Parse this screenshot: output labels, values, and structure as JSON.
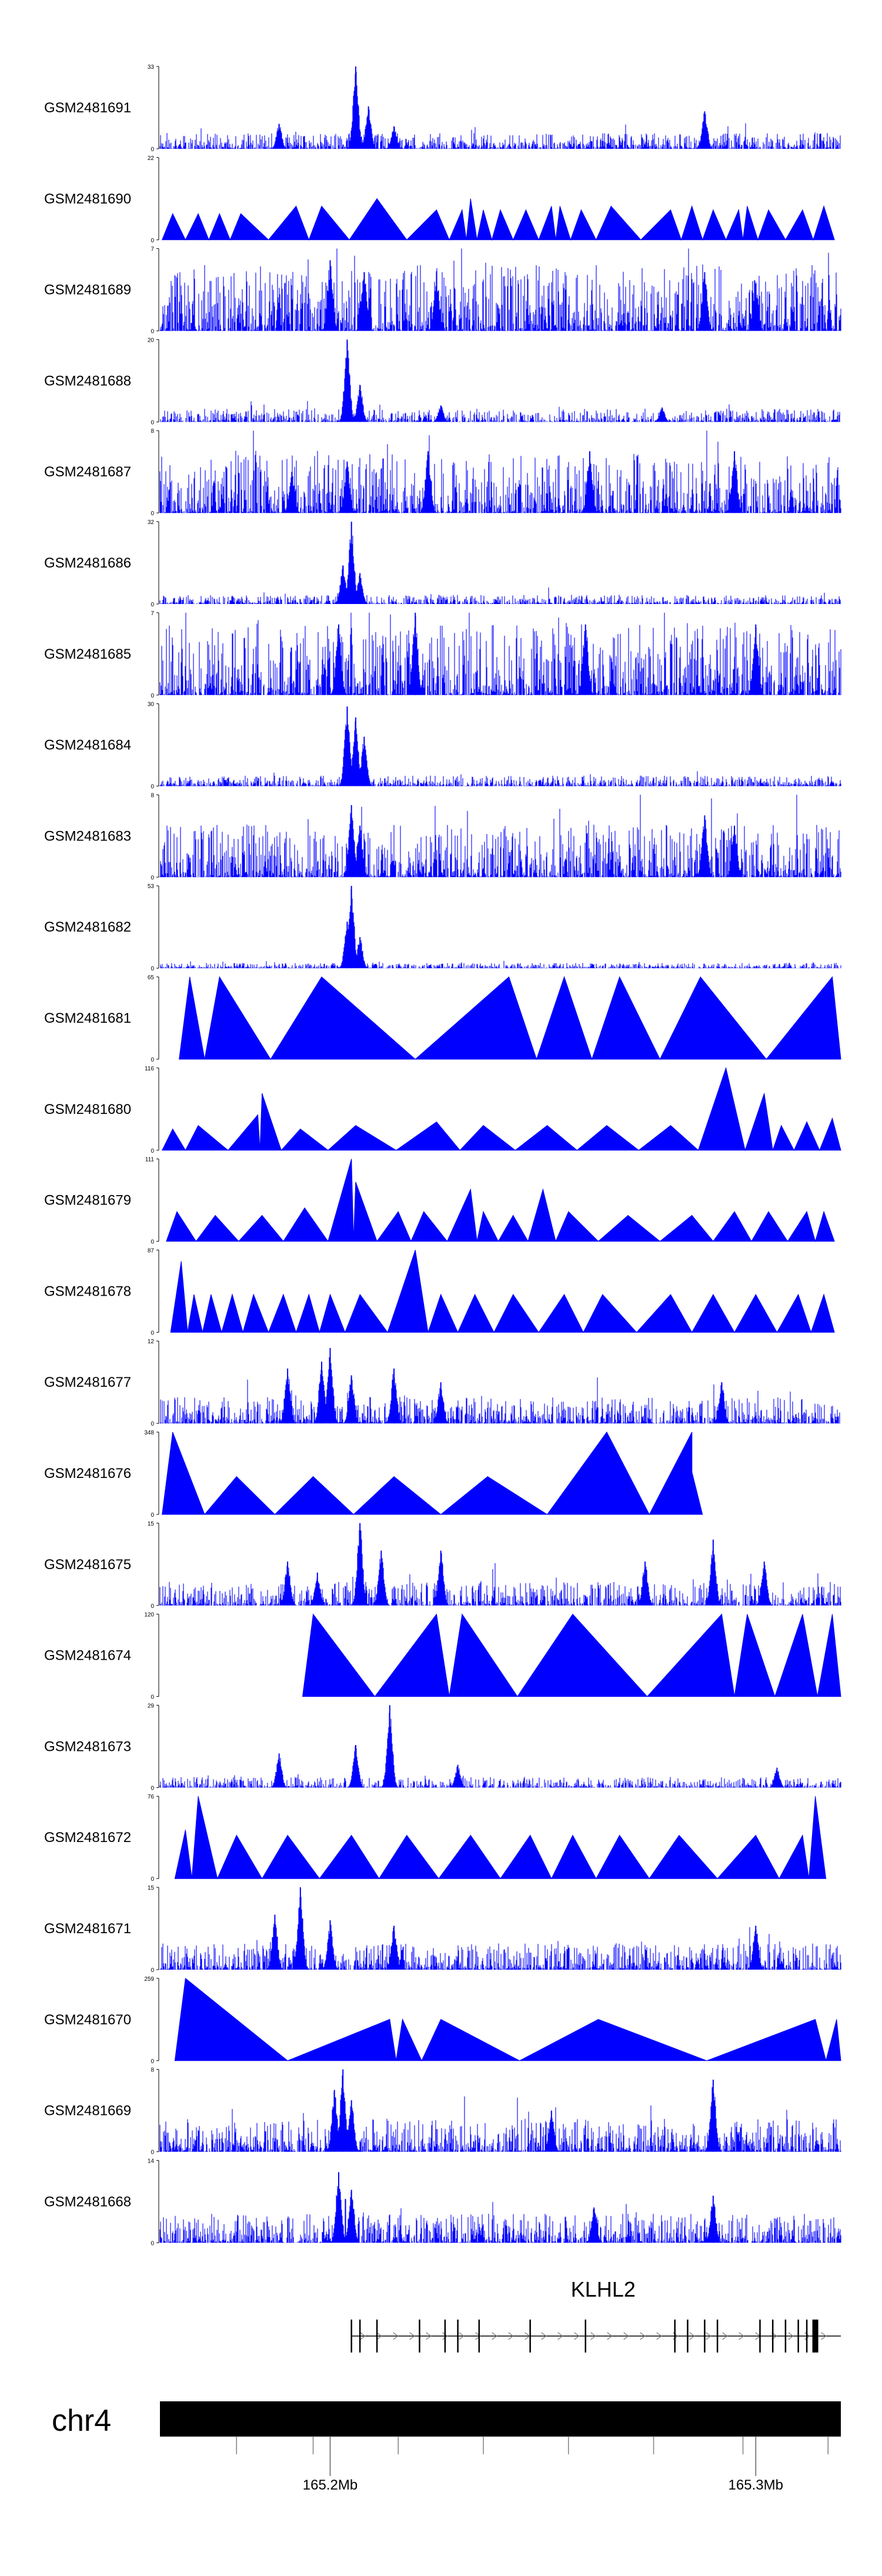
{
  "chart_data": {
    "type": "area",
    "chromosome": "chr4",
    "region": {
      "start": 165.16,
      "end": 165.32,
      "unit": "Mb"
    },
    "tracks": [
      {
        "name": "GSM2481691",
        "ymax": 33,
        "ymin": 0,
        "style": "dense",
        "peaks": [
          [
            165.188,
            10
          ],
          [
            165.206,
            33
          ],
          [
            165.209,
            17
          ],
          [
            165.215,
            9
          ],
          [
            165.288,
            15
          ]
        ],
        "noise": 0.12,
        "seed": 1
      },
      {
        "name": "GSM2481690",
        "ymax": 22,
        "ymin": 0,
        "style": "triangles",
        "peaks": [
          [
            165.163,
            7
          ],
          [
            165.169,
            7
          ],
          [
            165.174,
            7
          ],
          [
            165.179,
            7
          ],
          [
            165.192,
            9
          ],
          [
            165.198,
            9
          ],
          [
            165.211,
            11
          ],
          [
            165.225,
            8
          ],
          [
            165.231,
            8
          ],
          [
            165.233,
            11
          ],
          [
            165.236,
            8
          ],
          [
            165.24,
            8
          ],
          [
            165.246,
            8
          ],
          [
            165.252,
            9
          ],
          [
            165.254,
            9
          ],
          [
            165.259,
            8
          ],
          [
            165.266,
            9
          ],
          [
            165.28,
            8
          ],
          [
            165.285,
            9
          ],
          [
            165.29,
            8
          ],
          [
            165.296,
            8
          ],
          [
            165.298,
            9
          ],
          [
            165.303,
            8
          ],
          [
            165.311,
            8
          ],
          [
            165.316,
            9
          ]
        ],
        "noise": 0.25,
        "seed": 2
      },
      {
        "name": "GSM2481689",
        "ymax": 7,
        "ymin": 0,
        "style": "dense",
        "peaks": [
          [
            165.2,
            6
          ],
          [
            165.208,
            5
          ],
          [
            165.225,
            4.5
          ],
          [
            165.288,
            5
          ],
          [
            165.3,
            4
          ]
        ],
        "noise": 0.5,
        "seed": 3
      },
      {
        "name": "GSM2481688",
        "ymax": 20,
        "ymin": 0,
        "style": "dense",
        "peaks": [
          [
            165.204,
            20
          ],
          [
            165.207,
            9
          ],
          [
            165.226,
            4
          ],
          [
            165.278,
            3.5
          ]
        ],
        "noise": 0.1,
        "seed": 4
      },
      {
        "name": "GSM2481687",
        "ymax": 8,
        "ymin": 0,
        "style": "dense",
        "peaks": [
          [
            165.191,
            4
          ],
          [
            165.204,
            5
          ],
          [
            165.223,
            6
          ],
          [
            165.261,
            6
          ],
          [
            165.295,
            6
          ]
        ],
        "noise": 0.45,
        "seed": 5
      },
      {
        "name": "GSM2481686",
        "ymax": 32,
        "ymin": 0,
        "style": "dense",
        "peaks": [
          [
            165.205,
            32
          ],
          [
            165.203,
            15
          ],
          [
            165.207,
            12
          ]
        ],
        "noise": 0.07,
        "seed": 6
      },
      {
        "name": "GSM2481685",
        "ymax": 7,
        "ymin": 0,
        "style": "dense",
        "peaks": [
          [
            165.202,
            6
          ],
          [
            165.22,
            7
          ],
          [
            165.26,
            6
          ],
          [
            165.3,
            6
          ]
        ],
        "noise": 0.55,
        "seed": 7
      },
      {
        "name": "GSM2481684",
        "ymax": 30,
        "ymin": 0,
        "style": "dense",
        "peaks": [
          [
            165.204,
            29
          ],
          [
            165.206,
            25
          ],
          [
            165.208,
            18
          ]
        ],
        "noise": 0.08,
        "seed": 8
      },
      {
        "name": "GSM2481683",
        "ymax": 8,
        "ymin": 0,
        "style": "dense",
        "peaks": [
          [
            165.205,
            7
          ],
          [
            165.207,
            5
          ],
          [
            165.288,
            6
          ],
          [
            165.295,
            5
          ]
        ],
        "noise": 0.4,
        "seed": 9
      },
      {
        "name": "GSM2481682",
        "ymax": 53,
        "ymin": 0,
        "style": "dense",
        "peaks": [
          [
            165.205,
            53
          ],
          [
            165.204,
            30
          ],
          [
            165.207,
            20
          ]
        ],
        "noise": 0.04,
        "seed": 10
      },
      {
        "name": "GSM2481681",
        "ymax": 65,
        "ymin": 0,
        "style": "triangles",
        "peaks": [
          [
            165.167,
            65
          ],
          [
            165.174,
            65
          ],
          [
            165.198,
            65
          ],
          [
            165.242,
            65
          ],
          [
            165.255,
            65
          ],
          [
            165.268,
            65
          ],
          [
            165.287,
            65
          ],
          [
            165.318,
            65
          ]
        ],
        "noise": 0,
        "seed": 11
      },
      {
        "name": "GSM2481680",
        "ymax": 116,
        "ymin": 0,
        "style": "triangles",
        "peaks": [
          [
            165.163,
            30
          ],
          [
            165.169,
            35
          ],
          [
            165.183,
            50
          ],
          [
            165.184,
            80
          ],
          [
            165.193,
            30
          ],
          [
            165.206,
            35
          ],
          [
            165.225,
            40
          ],
          [
            165.236,
            35
          ],
          [
            165.251,
            35
          ],
          [
            165.265,
            35
          ],
          [
            165.28,
            35
          ],
          [
            165.293,
            116
          ],
          [
            165.302,
            80
          ],
          [
            165.306,
            35
          ],
          [
            165.312,
            40
          ],
          [
            165.318,
            45
          ]
        ],
        "noise": 0,
        "seed": 12
      },
      {
        "name": "GSM2481679",
        "ymax": 111,
        "ymin": 0,
        "style": "triangles",
        "peaks": [
          [
            165.164,
            40
          ],
          [
            165.173,
            35
          ],
          [
            165.184,
            35
          ],
          [
            165.194,
            45
          ],
          [
            165.205,
            111
          ],
          [
            165.206,
            80
          ],
          [
            165.216,
            40
          ],
          [
            165.222,
            40
          ],
          [
            165.233,
            70
          ],
          [
            165.236,
            40
          ],
          [
            165.243,
            35
          ],
          [
            165.25,
            70
          ],
          [
            165.256,
            40
          ],
          [
            165.27,
            35
          ],
          [
            165.285,
            35
          ],
          [
            165.295,
            40
          ],
          [
            165.303,
            40
          ],
          [
            165.312,
            40
          ],
          [
            165.316,
            40
          ]
        ],
        "noise": 0,
        "seed": 13
      },
      {
        "name": "GSM2481678",
        "ymax": 87,
        "ymin": 0,
        "style": "triangles",
        "peaks": [
          [
            165.165,
            75
          ],
          [
            165.168,
            40
          ],
          [
            165.172,
            40
          ],
          [
            165.177,
            40
          ],
          [
            165.182,
            40
          ],
          [
            165.189,
            40
          ],
          [
            165.195,
            40
          ],
          [
            165.2,
            40
          ],
          [
            165.207,
            40
          ],
          [
            165.22,
            87
          ],
          [
            165.226,
            40
          ],
          [
            165.234,
            40
          ],
          [
            165.243,
            40
          ],
          [
            165.255,
            40
          ],
          [
            165.264,
            40
          ],
          [
            165.28,
            40
          ],
          [
            165.29,
            40
          ],
          [
            165.3,
            40
          ],
          [
            165.31,
            40
          ],
          [
            165.316,
            40
          ]
        ],
        "noise": 0,
        "seed": 14
      },
      {
        "name": "GSM2481677",
        "ymax": 12,
        "ymin": 0,
        "style": "dense",
        "peaks": [
          [
            165.19,
            8
          ],
          [
            165.198,
            9
          ],
          [
            165.2,
            11
          ],
          [
            165.205,
            7
          ],
          [
            165.215,
            8
          ],
          [
            165.226,
            6
          ],
          [
            165.292,
            6
          ]
        ],
        "noise": 0.2,
        "seed": 15
      },
      {
        "name": "GSM2481676",
        "ymax": 348,
        "ymin": 0,
        "style": "triangles",
        "peaks": [
          [
            165.163,
            348
          ],
          [
            165.178,
            160
          ],
          [
            165.196,
            160
          ],
          [
            165.215,
            160
          ],
          [
            165.237,
            160
          ],
          [
            165.265,
            348
          ],
          [
            165.285,
            348
          ],
          [
            165.285,
            180
          ]
        ],
        "noise": 0,
        "seed": 16
      },
      {
        "name": "GSM2481675",
        "ymax": 15,
        "ymin": 0,
        "style": "dense",
        "peaks": [
          [
            165.19,
            8
          ],
          [
            165.197,
            6
          ],
          [
            165.207,
            15
          ],
          [
            165.212,
            10
          ],
          [
            165.226,
            10
          ],
          [
            165.274,
            8
          ],
          [
            165.29,
            12
          ],
          [
            165.302,
            8
          ]
        ],
        "noise": 0.18,
        "seed": 17
      },
      {
        "name": "GSM2481674",
        "ymax": 120,
        "ymin": 0,
        "style": "triangles",
        "peaks": [
          [
            165.196,
            120
          ],
          [
            165.225,
            120
          ],
          [
            165.231,
            120
          ],
          [
            165.257,
            120
          ],
          [
            165.292,
            120
          ],
          [
            165.298,
            120
          ],
          [
            165.311,
            120
          ],
          [
            165.318,
            120
          ]
        ],
        "noise": 0,
        "seed": 18
      },
      {
        "name": "GSM2481673",
        "ymax": 29,
        "ymin": 0,
        "style": "dense",
        "peaks": [
          [
            165.188,
            12
          ],
          [
            165.206,
            15
          ],
          [
            165.214,
            29
          ],
          [
            165.23,
            8
          ],
          [
            165.305,
            7
          ]
        ],
        "noise": 0.08,
        "seed": 19
      },
      {
        "name": "GSM2481672",
        "ymax": 76,
        "ymin": 0,
        "style": "triangles",
        "peaks": [
          [
            165.166,
            45
          ],
          [
            165.169,
            76
          ],
          [
            165.178,
            40
          ],
          [
            165.19,
            40
          ],
          [
            165.205,
            40
          ],
          [
            165.218,
            40
          ],
          [
            165.233,
            40
          ],
          [
            165.247,
            40
          ],
          [
            165.257,
            40
          ],
          [
            165.268,
            40
          ],
          [
            165.282,
            40
          ],
          [
            165.3,
            40
          ],
          [
            165.311,
            40
          ],
          [
            165.314,
            76
          ]
        ],
        "noise": 0,
        "seed": 20
      },
      {
        "name": "GSM2481671",
        "ymax": 15,
        "ymin": 0,
        "style": "dense",
        "peaks": [
          [
            165.187,
            10
          ],
          [
            165.193,
            15
          ],
          [
            165.2,
            9
          ],
          [
            165.215,
            8
          ],
          [
            165.3,
            8
          ]
        ],
        "noise": 0.2,
        "seed": 21
      },
      {
        "name": "GSM2481670",
        "ymax": 259,
        "ymin": 0,
        "style": "triangles",
        "peaks": [
          [
            165.166,
            259
          ],
          [
            165.214,
            130
          ],
          [
            165.217,
            130
          ],
          [
            165.226,
            130
          ],
          [
            165.263,
            130
          ],
          [
            165.314,
            130
          ],
          [
            165.319,
            130
          ]
        ],
        "noise": 0,
        "seed": 22
      },
      {
        "name": "GSM2481669",
        "ymax": 8,
        "ymin": 0,
        "style": "dense",
        "peaks": [
          [
            165.201,
            6
          ],
          [
            165.203,
            8
          ],
          [
            165.205,
            5
          ],
          [
            165.252,
            4
          ],
          [
            165.29,
            7
          ]
        ],
        "noise": 0.25,
        "seed": 23
      },
      {
        "name": "GSM2481668",
        "ymax": 14,
        "ymin": 0,
        "style": "dense",
        "peaks": [
          [
            165.202,
            12
          ],
          [
            165.205,
            9
          ],
          [
            165.262,
            6
          ],
          [
            165.29,
            8
          ]
        ],
        "noise": 0.22,
        "seed": 24
      }
    ],
    "gene": {
      "name": "KLHL2",
      "strand": "+",
      "start": 165.205,
      "end": 165.32,
      "exons": [
        165.205,
        165.207,
        165.211,
        165.221,
        165.227,
        165.23,
        165.235,
        165.247,
        165.26,
        165.281,
        165.284,
        165.288,
        165.291,
        165.301,
        165.304,
        165.307,
        165.31,
        165.312,
        165.314
      ]
    },
    "ideogram": {
      "label": "chr4"
    },
    "axis": {
      "ticks": [
        165.178,
        165.196,
        165.216,
        165.236,
        165.256,
        165.276,
        165.297,
        165.317
      ],
      "tick_labels": [
        {
          "pos": 165.2,
          "label": "165.2Mb"
        },
        {
          "pos": 165.3,
          "label": "165.3Mb"
        }
      ]
    },
    "colors": {
      "track_fill": "#0000ff",
      "ideogram": "#000000",
      "gene": "#000000",
      "axis": "#808080"
    }
  }
}
